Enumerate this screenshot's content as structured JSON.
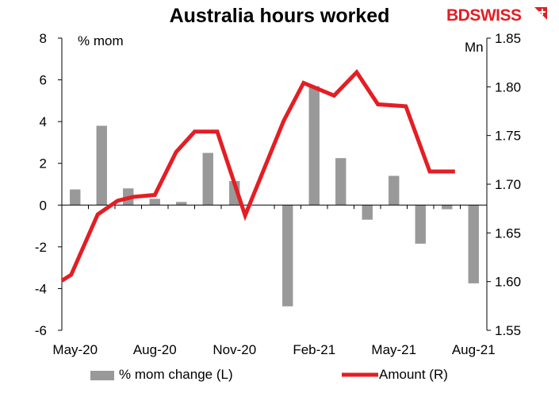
{
  "chart_data": {
    "type": "bar+line",
    "title": "Australia hours worked",
    "brand": "BDSWISS",
    "categories": [
      "May-20",
      "Jun-20",
      "Jul-20",
      "Aug-20",
      "Sep-20",
      "Oct-20",
      "Nov-20",
      "Dec-20",
      "Jan-21",
      "Feb-21",
      "Mar-21",
      "Apr-21",
      "May-21",
      "Jun-21",
      "Jul-21",
      "Aug-21"
    ],
    "x_tick_labels": [
      "May-20",
      "Aug-20",
      "Nov-20",
      "Feb-21",
      "May-21",
      "Aug-21"
    ],
    "left_axis": {
      "label": "% mom",
      "range": [
        -6,
        8
      ],
      "ticks": [
        -6,
        -4,
        -2,
        0,
        2,
        4,
        6,
        8
      ]
    },
    "right_axis": {
      "label": "Mn",
      "range": [
        1.55,
        1.85
      ],
      "ticks": [
        "1.55",
        "1.60",
        "1.65",
        "1.70",
        "1.75",
        "1.80",
        "1.85"
      ]
    },
    "series": [
      {
        "name": "% mom change (L)",
        "type": "bar",
        "axis": "left",
        "color": "#999999",
        "values": [
          0.75,
          3.8,
          0.8,
          0.3,
          0.15,
          2.5,
          1.15,
          0.0,
          -4.85,
          5.7,
          2.25,
          -0.7,
          1.4,
          -1.85,
          -0.2,
          -3.75
        ]
      },
      {
        "name": "Amount (R)",
        "type": "line",
        "axis": "right",
        "color": "#e31e24",
        "x": [
          0,
          0.35,
          1.35,
          2.1,
          2.7,
          3.5,
          4.3,
          5.0,
          5.85,
          6.9,
          8.35,
          9.1,
          10.25,
          11.1,
          11.9,
          12.95,
          13.85,
          14.8
        ],
        "values": [
          1.601,
          1.607,
          1.669,
          1.683,
          1.687,
          1.689,
          1.733,
          1.754,
          1.754,
          1.668,
          1.765,
          1.804,
          1.791,
          1.815,
          1.782,
          1.78,
          1.713,
          1.713
        ]
      }
    ],
    "legend_position": "bottom",
    "grid": false
  }
}
